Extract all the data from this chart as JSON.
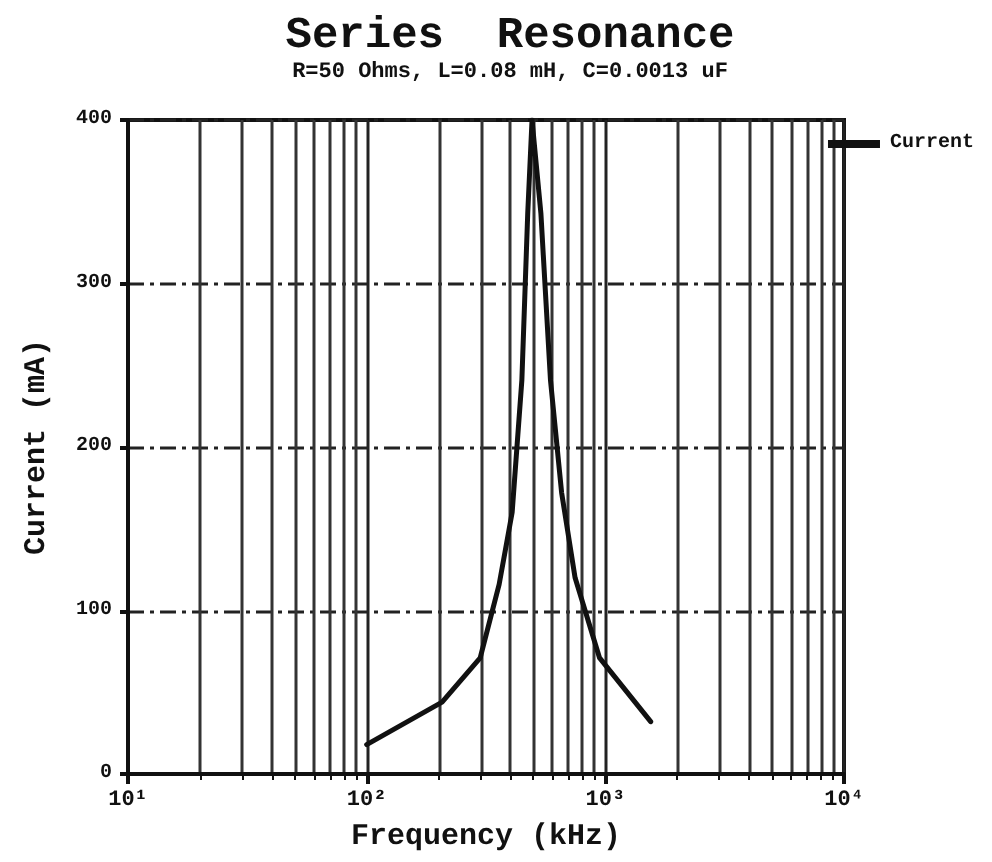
{
  "chart_data": {
    "type": "line",
    "title": "Series  Resonance",
    "subtitle": "R=50 Ohms, L=0.08 mH, C=0.0013 uF",
    "xlabel": "Frequency (kHz)",
    "ylabel": "Current (mA)",
    "x": [
      100,
      207,
      299,
      359,
      407,
      447,
      473,
      493,
      537,
      589,
      656,
      747,
      946,
      1549
    ],
    "series": [
      {
        "name": "Current",
        "color": "#111111",
        "values": [
          18,
          44,
          71,
          116,
          160,
          241,
          343,
          400,
          343,
          241,
          172,
          120,
          71,
          32
        ]
      }
    ],
    "log": "x",
    "xlim": [
      10,
      10000
    ],
    "xticks": [
      {
        "value": 10,
        "label": "10¹"
      },
      {
        "value": 100,
        "label": "10²"
      },
      {
        "value": 1000,
        "label": "10³"
      },
      {
        "value": 10000,
        "label": "10⁴"
      }
    ],
    "ylim": [
      0,
      400
    ],
    "yticks": [
      0,
      100,
      200,
      300,
      400
    ],
    "grid": true,
    "legend": "top right",
    "marker": "none",
    "line_style": "solid"
  }
}
